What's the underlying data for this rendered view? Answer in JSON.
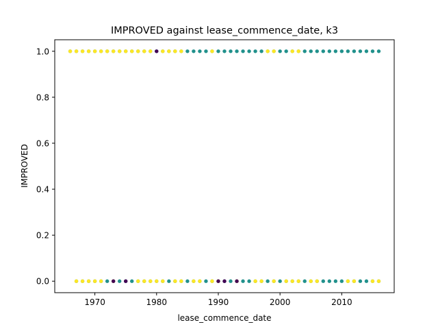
{
  "chart_data": {
    "type": "scatter",
    "title": "IMPROVED against lease_commence_date, k3",
    "xlabel": "lease_commence_date",
    "ylabel": "IMPROVED",
    "xlim": [
      1963.5,
      2018.5
    ],
    "ylim": [
      -0.05,
      1.05
    ],
    "x_ticks": [
      1970,
      1980,
      1990,
      2000,
      2010
    ],
    "y_ticks": [
      0.0,
      0.2,
      0.4,
      0.6,
      0.8,
      1.0
    ],
    "x_tick_labels": [
      "1970",
      "1980",
      "1990",
      "2000",
      "2010"
    ],
    "y_tick_labels": [
      "0.0",
      "0.2",
      "0.4",
      "0.6",
      "0.8",
      "1.0"
    ],
    "grid": false,
    "colors": {
      "teal": "#21918c",
      "yellow": "#fde725",
      "purple": "#440154"
    },
    "series": [
      {
        "color": "#21918c",
        "points": [
          [
            1966,
            1
          ],
          [
            1967,
            1
          ],
          [
            1968,
            1
          ],
          [
            1969,
            1
          ],
          [
            1970,
            1
          ],
          [
            1971,
            1
          ],
          [
            1972,
            1
          ],
          [
            1973,
            1
          ],
          [
            1974,
            1
          ],
          [
            1975,
            1
          ],
          [
            1976,
            1
          ],
          [
            1977,
            1
          ],
          [
            1978,
            1
          ],
          [
            1979,
            1
          ],
          [
            1980,
            1
          ],
          [
            1981,
            1
          ],
          [
            1982,
            1
          ],
          [
            1983,
            1
          ],
          [
            1984,
            1
          ],
          [
            1985,
            1
          ],
          [
            1986,
            1
          ],
          [
            1987,
            1
          ],
          [
            1988,
            1
          ],
          [
            1989,
            1
          ],
          [
            1990,
            1
          ],
          [
            1991,
            1
          ],
          [
            1992,
            1
          ],
          [
            1993,
            1
          ],
          [
            1994,
            1
          ],
          [
            1995,
            1
          ],
          [
            1996,
            1
          ],
          [
            1997,
            1
          ],
          [
            1998,
            1
          ],
          [
            1999,
            1
          ],
          [
            2000,
            1
          ],
          [
            2001,
            1
          ],
          [
            2002,
            1
          ],
          [
            2003,
            1
          ],
          [
            2004,
            1
          ],
          [
            2005,
            1
          ],
          [
            2006,
            1
          ],
          [
            2007,
            1
          ],
          [
            2008,
            1
          ],
          [
            2009,
            1
          ],
          [
            2010,
            1
          ],
          [
            2011,
            1
          ],
          [
            2012,
            1
          ],
          [
            2013,
            1
          ],
          [
            2014,
            1
          ],
          [
            2015,
            1
          ],
          [
            2016,
            1
          ],
          [
            1967,
            0
          ],
          [
            1968,
            0
          ],
          [
            1969,
            0
          ],
          [
            1970,
            0
          ],
          [
            1971,
            0
          ],
          [
            1972,
            0
          ],
          [
            1973,
            0
          ],
          [
            1974,
            0
          ],
          [
            1975,
            0
          ],
          [
            1976,
            0
          ],
          [
            1977,
            0
          ],
          [
            1978,
            0
          ],
          [
            1979,
            0
          ],
          [
            1980,
            0
          ],
          [
            1981,
            0
          ],
          [
            1982,
            0
          ],
          [
            1983,
            0
          ],
          [
            1984,
            0
          ],
          [
            1985,
            0
          ],
          [
            1986,
            0
          ],
          [
            1987,
            0
          ],
          [
            1988,
            0
          ],
          [
            1989,
            0
          ],
          [
            1990,
            0
          ],
          [
            1991,
            0
          ],
          [
            1992,
            0
          ],
          [
            1993,
            0
          ],
          [
            1994,
            0
          ],
          [
            1995,
            0
          ],
          [
            1996,
            0
          ],
          [
            1997,
            0
          ],
          [
            1998,
            0
          ],
          [
            1999,
            0
          ],
          [
            2000,
            0
          ],
          [
            2001,
            0
          ],
          [
            2002,
            0
          ],
          [
            2003,
            0
          ],
          [
            2004,
            0
          ],
          [
            2005,
            0
          ],
          [
            2006,
            0
          ],
          [
            2007,
            0
          ],
          [
            2008,
            0
          ],
          [
            2009,
            0
          ],
          [
            2010,
            0
          ],
          [
            2011,
            0
          ],
          [
            2012,
            0
          ],
          [
            2013,
            0
          ],
          [
            2014,
            0
          ],
          [
            2015,
            0
          ],
          [
            2016,
            0
          ]
        ]
      },
      {
        "color": "#fde725",
        "points": [
          [
            1966,
            1
          ],
          [
            1967,
            1
          ],
          [
            1968,
            1
          ],
          [
            1969,
            1
          ],
          [
            1970,
            1
          ],
          [
            1971,
            1
          ],
          [
            1972,
            1
          ],
          [
            1973,
            1
          ],
          [
            1974,
            1
          ],
          [
            1975,
            1
          ],
          [
            1976,
            1
          ],
          [
            1977,
            1
          ],
          [
            1978,
            1
          ],
          [
            1979,
            1
          ],
          [
            1981,
            1
          ],
          [
            1982,
            1
          ],
          [
            1983,
            1
          ],
          [
            1984,
            1
          ],
          [
            1989,
            1
          ],
          [
            1998,
            1
          ],
          [
            1999,
            1
          ],
          [
            2002,
            1
          ],
          [
            2003,
            1
          ],
          [
            1967,
            0
          ],
          [
            1968,
            0
          ],
          [
            1969,
            0
          ],
          [
            1970,
            0
          ],
          [
            1971,
            0
          ],
          [
            1973,
            0
          ],
          [
            1977,
            0
          ],
          [
            1978,
            0
          ],
          [
            1979,
            0
          ],
          [
            1980,
            0
          ],
          [
            1981,
            0
          ],
          [
            1983,
            0
          ],
          [
            1984,
            0
          ],
          [
            1986,
            0
          ],
          [
            1987,
            0
          ],
          [
            1989,
            0
          ],
          [
            1990,
            0
          ],
          [
            1993,
            0
          ],
          [
            1996,
            0
          ],
          [
            1997,
            0
          ],
          [
            1999,
            0
          ],
          [
            2001,
            0
          ],
          [
            2002,
            0
          ],
          [
            2003,
            0
          ],
          [
            2005,
            0
          ],
          [
            2006,
            0
          ],
          [
            2011,
            0
          ],
          [
            2012,
            0
          ],
          [
            2015,
            0
          ],
          [
            2016,
            0
          ]
        ]
      },
      {
        "color": "#440154",
        "points": [
          [
            1980,
            1
          ],
          [
            1973,
            0
          ],
          [
            1990,
            0
          ],
          [
            1991,
            0
          ],
          [
            1993,
            0
          ],
          [
            1975,
            0
          ]
        ]
      }
    ]
  }
}
